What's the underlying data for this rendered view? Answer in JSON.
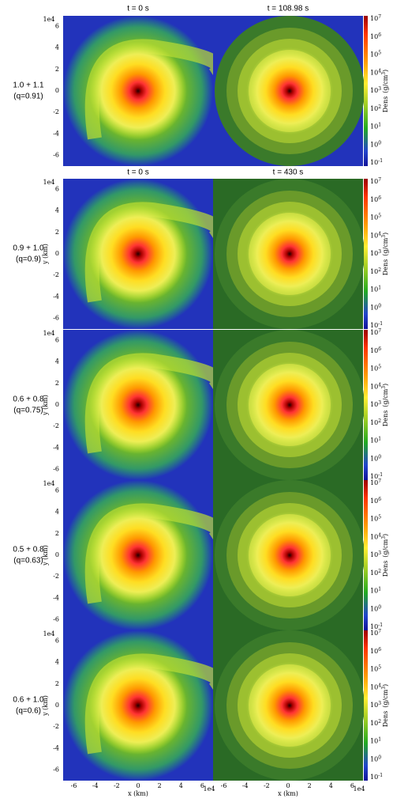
{
  "columns_top": [
    "t = 0 s",
    "t = 108.98 s"
  ],
  "columns_lower": [
    "t = 0 s",
    "t = 430 s"
  ],
  "rows": [
    {
      "label": "1.0 + 1.1",
      "q": "(q=0.91)"
    },
    {
      "label": "0.9 + 1.0",
      "q": "(q=0.9)"
    },
    {
      "label": "0.6 + 0.8",
      "q": "(q=0.75)"
    },
    {
      "label": "0.5 + 0.8",
      "q": "(q=0.63)"
    },
    {
      "label": "0.6 + 1.0",
      "q": "(q=0.6)"
    }
  ],
  "y_axis": {
    "label": "y (km)",
    "multiplier": "1e4",
    "ticks": [
      "6",
      "4",
      "2",
      "0",
      "-2",
      "-4",
      "-6"
    ]
  },
  "x_axis": {
    "label": "x (km)",
    "multiplier": "1e4",
    "ticks": [
      "-6",
      "-4",
      "-2",
      "0",
      "2",
      "4",
      "6"
    ]
  },
  "colorbar": {
    "label": "Dens",
    "unit": "(g/cm",
    "unit_exp": "3",
    "unit_close": ")",
    "ticks": [
      {
        "base": "10",
        "exp": "7"
      },
      {
        "base": "10",
        "exp": "6"
      },
      {
        "base": "10",
        "exp": "5"
      },
      {
        "base": "10",
        "exp": "4"
      },
      {
        "base": "10",
        "exp": "3"
      },
      {
        "base": "10",
        "exp": "2"
      },
      {
        "base": "10",
        "exp": "1"
      },
      {
        "base": "10",
        "exp": "0"
      },
      {
        "base": "10",
        "exp": "-1"
      }
    ]
  }
}
